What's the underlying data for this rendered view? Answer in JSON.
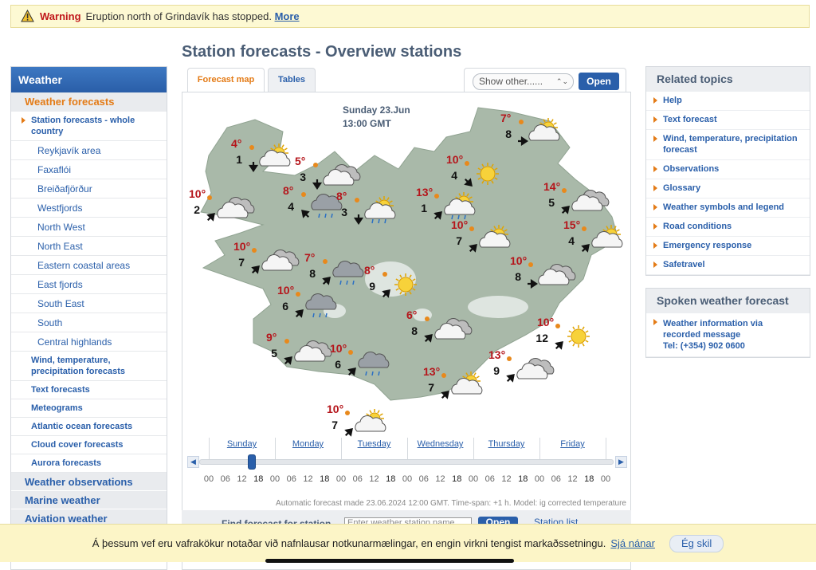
{
  "warning": {
    "label": "Warning",
    "text": "Eruption north of Grindavík has stopped.",
    "link": "More"
  },
  "page_title": "Station forecasts - Overview stations",
  "nav": {
    "header": "Weather",
    "section": "Weather forecasts",
    "current": "Station forecasts - whole country",
    "subitems": [
      "Reykjavík area",
      "Faxaflói",
      "Breiðafjörður",
      "Westfjords",
      "North West",
      "North East",
      "Eastern coastal areas",
      "East fjords",
      "South East",
      "South",
      "Central highlands"
    ],
    "items": [
      "Wind, temperature, precipitation forecasts",
      "Text forecasts",
      "Meteograms",
      "Atlantic ocean forecasts",
      "Cloud cover forecasts",
      "Aurora forecasts"
    ],
    "sections": [
      "Weather observations",
      "Marine weather",
      "Aviation weather"
    ]
  },
  "tabs": [
    "Forecast map",
    "Tables"
  ],
  "select": "Show other......",
  "open_button": "Open",
  "map": {
    "date": "Sunday 23.Jun",
    "time": "13:00 GMT",
    "stations": [
      {
        "temp": "4°",
        "wind": 1
      },
      {
        "temp": "5°",
        "wind": 3
      },
      {
        "temp": "10°",
        "wind": 2
      },
      {
        "temp": "8°",
        "wind": 4
      },
      {
        "temp": "8°",
        "wind": 3
      },
      {
        "temp": "10°",
        "wind": 4
      },
      {
        "temp": "7°",
        "wind": 8
      },
      {
        "temp": "13°",
        "wind": 1
      },
      {
        "temp": "14°",
        "wind": 5
      },
      {
        "temp": "10°",
        "wind": 7
      },
      {
        "temp": "15°",
        "wind": 4
      },
      {
        "temp": "10°",
        "wind": 7
      },
      {
        "temp": "7°",
        "wind": 8
      },
      {
        "temp": "8°",
        "wind": 9
      },
      {
        "temp": "10°",
        "wind": 8
      },
      {
        "temp": "10°",
        "wind": 6
      },
      {
        "temp": "6°",
        "wind": 8
      },
      {
        "temp": "10°",
        "wind": 12
      },
      {
        "temp": "9°",
        "wind": 5
      },
      {
        "temp": "10°",
        "wind": 6
      },
      {
        "temp": "13°",
        "wind": 9
      },
      {
        "temp": "13°",
        "wind": 7
      },
      {
        "temp": "10°",
        "wind": 7
      }
    ]
  },
  "timeline": {
    "days": [
      "Sunday",
      "Monday",
      "Tuesday",
      "Wednesday",
      "Thursday",
      "Friday"
    ],
    "hours": [
      "00",
      "06",
      "12",
      "18",
      "00",
      "06",
      "12",
      "18",
      "00",
      "06",
      "12",
      "18",
      "00",
      "06",
      "12",
      "18",
      "00",
      "06",
      "12",
      "18",
      "00",
      "06",
      "12",
      "18",
      "00"
    ]
  },
  "footnote": "Automatic forecast made 23.06.2024 12:00 GMT. Time-span: +1 h. Model: ig corrected temperature",
  "find": {
    "label": "Find forecast for station",
    "placeholder": "Enter weather station name",
    "button": "Open",
    "list": "Station list"
  },
  "related": {
    "title": "Related topics",
    "items": [
      "Help",
      "Text forecast",
      "Wind, temperature, precipitation forecast",
      "Observations",
      "Glossary",
      "Weather symbols and legend",
      "Road conditions",
      "Emergency response",
      "Safetravel"
    ]
  },
  "spoken": {
    "title": "Spoken weather forecast",
    "lines": [
      "Weather information via",
      "recorded message",
      "Tel: (+354) 902 0600"
    ]
  },
  "cookie": {
    "text": "Á þessum vef eru vafrakökur notaðar við nafnlausar notkunarmælingar, en engin virkni tengist markaðssetningu.",
    "link": "Sjá nánar",
    "button": "Ég skil"
  }
}
